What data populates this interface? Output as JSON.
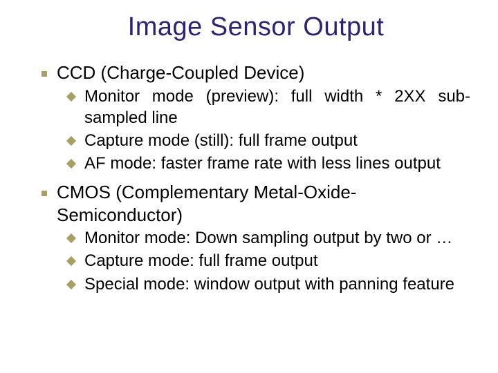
{
  "slide": {
    "title": "Image Sensor Output",
    "title_color": "#2e2373",
    "title_fontsize": 38,
    "bullet_color": "#a89f64",
    "text_color": "#000000",
    "body_fontsize_top": 26,
    "body_fontsize_sub": 24,
    "background_color": "#ffffff",
    "items": [
      {
        "label": "CCD (Charge-Coupled Device)",
        "subs": [
          {
            "text": "Monitor mode (preview): full width * 2XX sub-sampled line"
          },
          {
            "text": "Capture mode (still): full frame output"
          },
          {
            "text": "AF mode: faster frame rate with less lines output"
          }
        ]
      },
      {
        "label": "CMOS (Complementary Metal-Oxide-Semiconductor)",
        "subs": [
          {
            "text": "Monitor mode: Down sampling output by two or …"
          },
          {
            "text": "Capture mode: full frame output"
          },
          {
            "text": "Special mode: window output with panning feature"
          }
        ]
      }
    ]
  }
}
